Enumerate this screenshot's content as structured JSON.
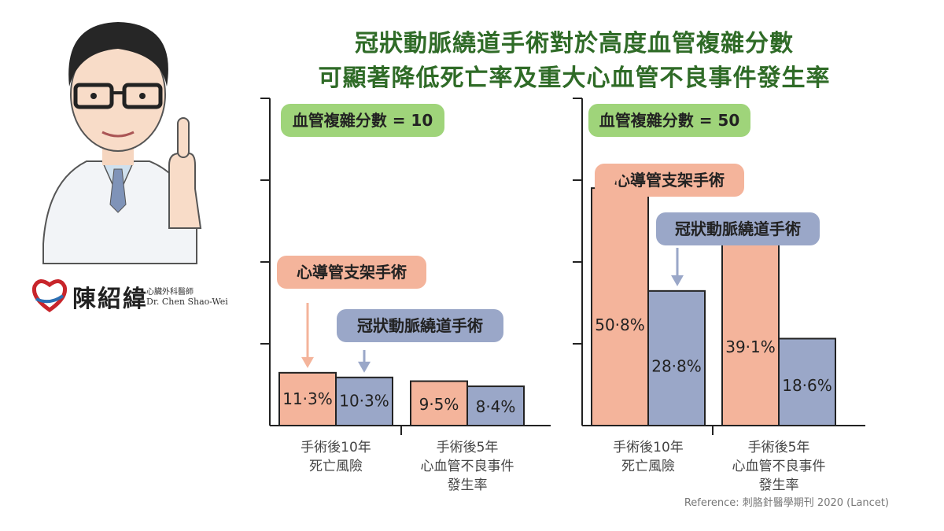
{
  "title_line1": "冠狀動脈繞道手術對於高度血管複雜分數",
  "title_line2": "可顯著降低死亡率及重大心血管不良事件發生率",
  "logo": {
    "name": "陳紹緯",
    "subtitle_cn": "心臟外科醫師",
    "subtitle_en": "Dr. Chen Shao-Wei"
  },
  "reference": "Reference: 刺胳針醫學期刊 2020 (Lancet)",
  "colors": {
    "stent": "#f4b49b",
    "cabg": "#9aa7c8",
    "score_badge": "#9fd47a",
    "title": "#2f6b27"
  },
  "chart_data": [
    {
      "type": "bar",
      "score_label": "血管複雜分數 = 10",
      "categories": [
        "手術後10年\n死亡風險",
        "手術後5年\n心血管不良事件\n發生率"
      ],
      "series": [
        {
          "name": "心導管支架手術",
          "values": [
            11.3,
            9.5
          ],
          "labels": [
            "11·3%",
            "9·5%"
          ]
        },
        {
          "name": "冠狀動脈繞道手術",
          "values": [
            10.3,
            8.4
          ],
          "labels": [
            "10·3%",
            "8·4%"
          ]
        }
      ],
      "ylim": [
        0,
        70
      ]
    },
    {
      "type": "bar",
      "score_label": "血管複雜分數 = 50",
      "categories": [
        "手術後10年\n死亡風險",
        "手術後5年\n心血管不良事件\n發生率"
      ],
      "series": [
        {
          "name": "心導管支架手術",
          "values": [
            50.8,
            39.1
          ],
          "labels": [
            "50·8%",
            "39·1%"
          ]
        },
        {
          "name": "冠狀動脈繞道手術",
          "values": [
            28.8,
            18.6
          ],
          "labels": [
            "28·8%",
            "18·6%"
          ]
        }
      ],
      "ylim": [
        0,
        70
      ]
    }
  ]
}
